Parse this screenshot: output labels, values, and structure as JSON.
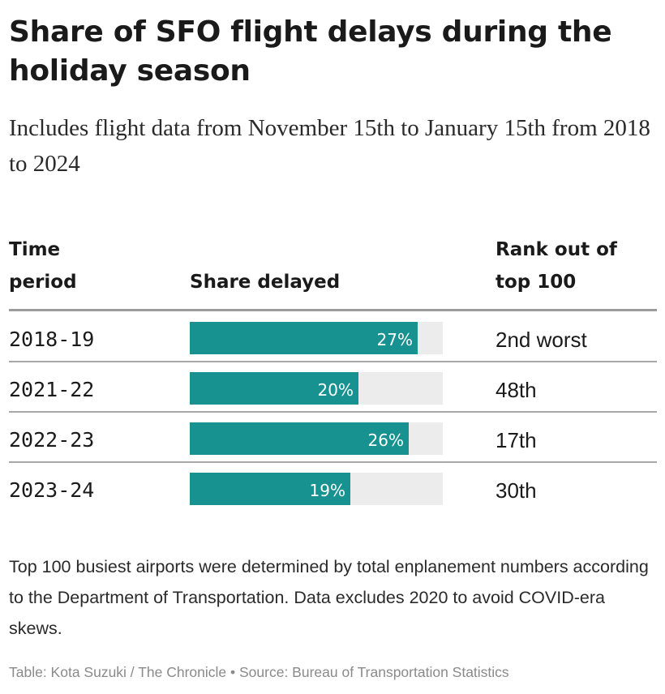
{
  "title": "Share of SFO flight delays during the holiday season",
  "subtitle": "Includes flight data from November 15th to January 15th from 2018 to 2024",
  "columns": {
    "time_period": "Time period",
    "share_delayed": "Share delayed",
    "rank": "Rank out of top 100"
  },
  "chart_data": {
    "type": "table",
    "title": "Share of SFO flight delays during the holiday season",
    "subtitle": "Includes flight data from November 15th to January 15th from 2018 to 2024",
    "columns": [
      "Time period",
      "Share delayed",
      "Rank out of top 100"
    ],
    "rows": [
      {
        "period": "2018-19",
        "share": 27,
        "share_label": "27%",
        "rank": "2nd worst"
      },
      {
        "period": "2021-22",
        "share": 20,
        "share_label": "20%",
        "rank": "48th"
      },
      {
        "period": "2022-23",
        "share": 26,
        "share_label": "26%",
        "rank": "17th"
      },
      {
        "period": "2023-24",
        "share": 19,
        "share_label": "19%",
        "rank": "30th"
      }
    ],
    "bar_scale_max": 30,
    "bar_color": "#189191",
    "track_color": "#ececec"
  },
  "note": "Top 100 busiest airports were determined by total enplanement numbers according to the Department of Transportation. Data excludes 2020 to avoid COVID-era skews.",
  "source": "Table: Kota Suzuki / The Chronicle • Source: Bureau of Transportation Statistics"
}
